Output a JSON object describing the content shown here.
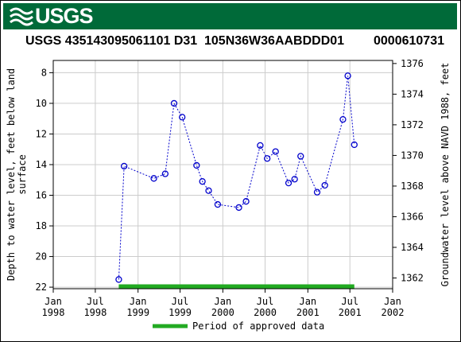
{
  "banner": {
    "logo_text": "USGS",
    "color": "#006a39"
  },
  "header": {
    "site_id": "USGS 435143095061101 D31",
    "local_number": "105N36W36AABDDD01",
    "agency_code": "0000610731"
  },
  "chart_data": {
    "type": "line",
    "left_axis": {
      "label": "Depth to water level, feet below land surface",
      "inverted": true,
      "ylim": [
        22.1,
        7.2
      ],
      "ticks": [
        8,
        10,
        12,
        14,
        16,
        18,
        20,
        22
      ]
    },
    "right_axis": {
      "label": "Groundwater level above NAVD 1988, feet",
      "ylim": [
        1361.3,
        1376.2
      ],
      "ticks": [
        1362,
        1364,
        1366,
        1368,
        1370,
        1372,
        1374,
        1376
      ]
    },
    "x_axis": {
      "xlim": [
        "1998-01-01",
        "2002-01-01"
      ],
      "ticks": [
        {
          "date": "1998-01-01",
          "line1": "Jan",
          "line2": "1998"
        },
        {
          "date": "1998-07-01",
          "line1": "Jul",
          "line2": "1998"
        },
        {
          "date": "1999-01-01",
          "line1": "Jan",
          "line2": "1999"
        },
        {
          "date": "1999-07-01",
          "line1": "Jul",
          "line2": "1999"
        },
        {
          "date": "2000-01-01",
          "line1": "Jan",
          "line2": "2000"
        },
        {
          "date": "2000-07-01",
          "line1": "Jul",
          "line2": "2000"
        },
        {
          "date": "2001-01-01",
          "line1": "Jan",
          "line2": "2001"
        },
        {
          "date": "2001-07-01",
          "line1": "Jul",
          "line2": "2001"
        },
        {
          "date": "2002-01-01",
          "line1": "Jan",
          "line2": "2002"
        }
      ]
    },
    "grid": true,
    "series": [
      {
        "style": "dotted-blue-with-circles",
        "color": "#0000cc",
        "points": [
          {
            "date": "1998-10-10",
            "depth": 21.5
          },
          {
            "date": "1998-11-02",
            "depth": 14.1
          },
          {
            "date": "1999-03-10",
            "depth": 14.9
          },
          {
            "date": "1999-04-28",
            "depth": 14.6
          },
          {
            "date": "1999-06-05",
            "depth": 10.0
          },
          {
            "date": "1999-07-10",
            "depth": 10.9
          },
          {
            "date": "1999-09-10",
            "depth": 14.05
          },
          {
            "date": "1999-10-05",
            "depth": 15.1
          },
          {
            "date": "1999-11-01",
            "depth": 15.7
          },
          {
            "date": "1999-12-10",
            "depth": 16.6
          },
          {
            "date": "2000-03-10",
            "depth": 16.8
          },
          {
            "date": "2000-04-10",
            "depth": 16.4
          },
          {
            "date": "2000-06-10",
            "depth": 12.75
          },
          {
            "date": "2000-07-10",
            "depth": 13.6
          },
          {
            "date": "2000-08-15",
            "depth": 13.15
          },
          {
            "date": "2000-10-10",
            "depth": 15.2
          },
          {
            "date": "2000-11-05",
            "depth": 14.95
          },
          {
            "date": "2000-12-01",
            "depth": 13.45
          },
          {
            "date": "2001-02-10",
            "depth": 15.8
          },
          {
            "date": "2001-03-15",
            "depth": 15.35
          },
          {
            "date": "2001-06-01",
            "depth": 11.05
          },
          {
            "date": "2001-06-22",
            "depth": 8.2
          },
          {
            "date": "2001-07-20",
            "depth": 12.7
          }
        ]
      }
    ],
    "approved_period": {
      "start": "1998-10-10",
      "end": "2001-07-20",
      "color": "#22aa22"
    },
    "legend": {
      "label": "Period of approved data",
      "placement": "bottom-center"
    }
  }
}
